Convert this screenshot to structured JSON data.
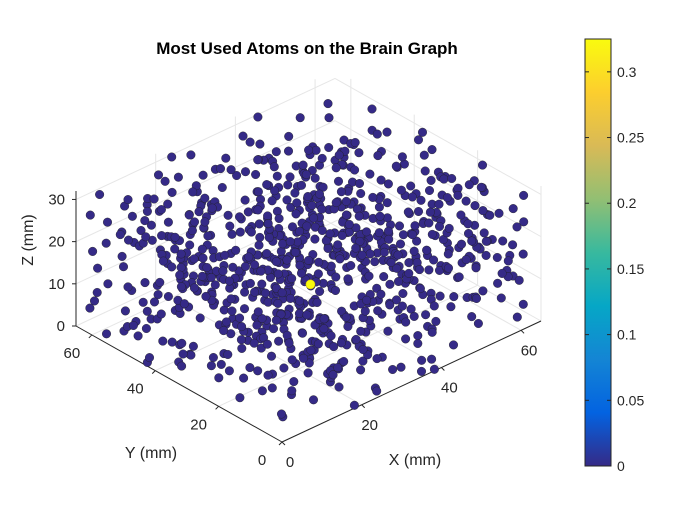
{
  "chart_data": {
    "type": "scatter",
    "title": "Most Used Atoms on the Brain Graph",
    "xlabel": "X (mm)",
    "ylabel": "Y (mm)",
    "zlabel": "Z (mm)",
    "xlim": [
      0,
      65
    ],
    "ylim": [
      0,
      65
    ],
    "zlim": [
      0,
      32
    ],
    "x_ticks": [
      "0",
      "20",
      "40",
      "60"
    ],
    "y_ticks": [
      "0",
      "20",
      "40",
      "60"
    ],
    "z_ticks": [
      "0",
      "10",
      "20",
      "30"
    ],
    "grid": true,
    "colorbar": {
      "colormap": "parula",
      "clim": [
        0,
        0.325
      ],
      "ticks": [
        "0",
        "0.05",
        "0.1",
        "0.15",
        "0.2",
        "0.25",
        "0.3"
      ],
      "tick_values": [
        0,
        0.05,
        0.1,
        0.15,
        0.2,
        0.25,
        0.3
      ],
      "colors": [
        "#352a87",
        "#0363e1",
        "#1485d4",
        "#06a7c6",
        "#38b99e",
        "#92bf73",
        "#d9ba56",
        "#fcce2e",
        "#f9fb0e"
      ]
    },
    "series": [
      {
        "num_points": 900,
        "distribution": "roughly uniform in X 0–65, Y 0–65, Z 0–32 mm",
        "value": 0,
        "color": "#352a87"
      }
    ],
    "highlight": {
      "x": 31,
      "y": 30,
      "z": 11,
      "value": 0.325,
      "color": "#f9fb0e"
    }
  }
}
